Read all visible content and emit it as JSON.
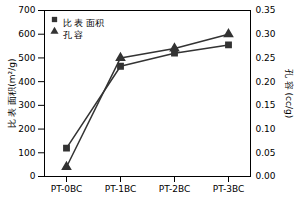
{
  "chart_data": {
    "type": "line",
    "categories": [
      "PT-0BC",
      "PT-1BC",
      "PT-2BC",
      "PT-3BC"
    ],
    "series": [
      {
        "name": "比 表 面积",
        "color": "#333333",
        "marker": "square",
        "values": [
          120,
          465,
          520,
          555
        ]
      },
      {
        "name": "孔 容",
        "color": "#333333",
        "marker": "triangle",
        "axis": "y2",
        "values": [
          0.02,
          0.25,
          0.27,
          0.3
        ]
      }
    ],
    "ylabel": "比 表 面积(m²/g)",
    "y2label": "孔 容 (cc/g)",
    "ylim": [
      0,
      700
    ],
    "yticks": [
      0,
      100,
      200,
      300,
      400,
      500,
      600,
      700
    ],
    "y2lim": [
      0.0,
      0.35
    ],
    "y2ticks": [
      {
        "value": 0,
        "label": "0.00"
      },
      0.05,
      {
        "value": 0.1,
        "label": "0.10"
      },
      0.15,
      {
        "value": 0.2,
        "label": "0.20"
      },
      0.25,
      {
        "value": 0.3,
        "label": "0.30"
      },
      0.35
    ],
    "legend": "top-left",
    "grid": false
  }
}
